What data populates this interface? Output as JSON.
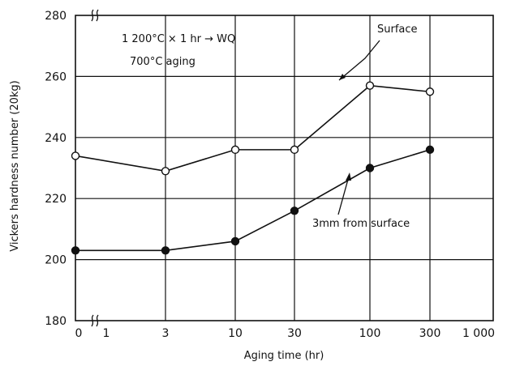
{
  "chart_data": {
    "type": "line",
    "xlabel": "Aging time (hr)",
    "ylabel": "Vickers hardness number (20kg)",
    "x_tick_labels": [
      "0",
      "1",
      "3",
      "10",
      "30",
      "100",
      "300",
      "1 000"
    ],
    "y_tick_labels": [
      "180",
      "200",
      "220",
      "240",
      "260",
      "280"
    ],
    "ylim": [
      180,
      280
    ],
    "grid": true,
    "annotations": [
      "1 200°C × 1 hr → WQ",
      "700°C aging"
    ],
    "series": [
      {
        "name": "Surface",
        "marker": "open-circle",
        "x": [
          "0",
          "3",
          "10",
          "30",
          "100",
          "300"
        ],
        "values": [
          234,
          229,
          236,
          236,
          257,
          255
        ]
      },
      {
        "name": "3mm from surface",
        "marker": "filled-circle",
        "x": [
          "0",
          "3",
          "10",
          "30",
          "100",
          "300"
        ],
        "values": [
          203,
          203,
          206,
          216,
          230,
          236
        ]
      }
    ]
  }
}
